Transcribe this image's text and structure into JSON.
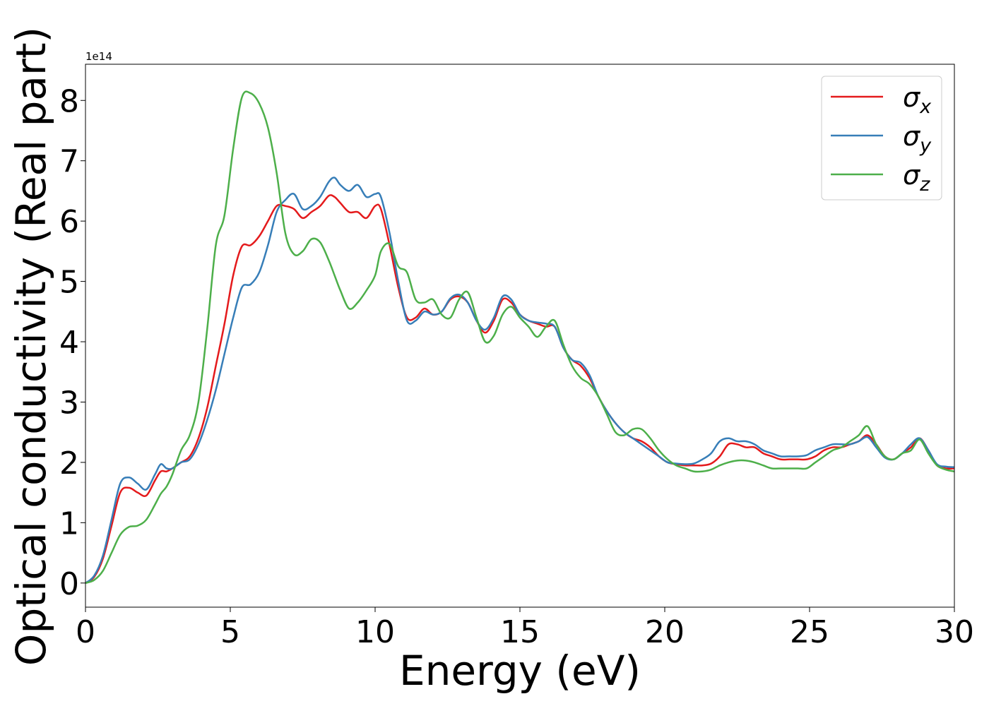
{
  "chart_data": {
    "type": "line",
    "title": "",
    "xlabel": "Energy (eV)",
    "ylabel": "Optical conductivity (Real part)",
    "y_offset_label": "1e14",
    "xlim": [
      0,
      30
    ],
    "ylim": [
      -0.4,
      8.6
    ],
    "xticks": [
      0,
      5,
      10,
      15,
      20,
      25,
      30
    ],
    "yticks": [
      0,
      1,
      2,
      3,
      4,
      5,
      6,
      7,
      8
    ],
    "grid": false,
    "legend_position": "top-right",
    "series": [
      {
        "name": "σx",
        "symbol": "σ",
        "subscript": "x",
        "color": "#e41a1c",
        "x": [
          0,
          0.3,
          0.6,
          0.9,
          1.2,
          1.5,
          1.8,
          2.1,
          2.4,
          2.6,
          2.8,
          3.0,
          3.3,
          3.6,
          3.9,
          4.2,
          4.5,
          4.8,
          5.1,
          5.4,
          5.7,
          6.0,
          6.3,
          6.6,
          6.9,
          7.2,
          7.5,
          7.8,
          8.1,
          8.4,
          8.6,
          8.8,
          9.1,
          9.4,
          9.7,
          10.0,
          10.2,
          10.5,
          10.8,
          11.1,
          11.4,
          11.7,
          12.0,
          12.3,
          12.6,
          12.9,
          13.2,
          13.5,
          13.8,
          14.1,
          14.4,
          14.7,
          15.0,
          15.3,
          15.6,
          15.9,
          16.2,
          16.5,
          16.8,
          17.1,
          17.4,
          17.7,
          18.0,
          18.3,
          18.6,
          18.9,
          19.2,
          19.5,
          19.8,
          20.1,
          20.4,
          20.7,
          21.0,
          21.3,
          21.6,
          21.9,
          22.2,
          22.5,
          22.8,
          23.1,
          23.4,
          23.7,
          24.0,
          24.3,
          24.6,
          24.9,
          25.2,
          25.5,
          25.8,
          26.1,
          26.4,
          26.7,
          27.0,
          27.3,
          27.6,
          27.9,
          28.2,
          28.5,
          28.8,
          29.1,
          29.4,
          29.7,
          30.0
        ],
        "y": [
          0,
          0.1,
          0.4,
          0.95,
          1.5,
          1.58,
          1.5,
          1.45,
          1.7,
          1.85,
          1.85,
          1.9,
          2.0,
          2.1,
          2.4,
          2.9,
          3.6,
          4.3,
          5.1,
          5.58,
          5.6,
          5.75,
          6.0,
          6.25,
          6.25,
          6.2,
          6.05,
          6.15,
          6.25,
          6.42,
          6.4,
          6.3,
          6.15,
          6.15,
          6.05,
          6.25,
          6.2,
          5.6,
          4.9,
          4.4,
          4.4,
          4.55,
          4.45,
          4.5,
          4.7,
          4.75,
          4.65,
          4.35,
          4.15,
          4.35,
          4.7,
          4.65,
          4.45,
          4.35,
          4.3,
          4.25,
          4.25,
          3.9,
          3.7,
          3.6,
          3.4,
          3.1,
          2.85,
          2.65,
          2.5,
          2.4,
          2.35,
          2.25,
          2.1,
          2.0,
          1.97,
          1.95,
          1.95,
          1.95,
          1.98,
          2.1,
          2.3,
          2.3,
          2.25,
          2.25,
          2.15,
          2.1,
          2.05,
          2.05,
          2.05,
          2.05,
          2.1,
          2.2,
          2.25,
          2.25,
          2.3,
          2.35,
          2.45,
          2.3,
          2.1,
          2.05,
          2.15,
          2.25,
          2.4,
          2.2,
          1.95,
          1.9,
          1.9
        ]
      },
      {
        "name": "σy",
        "symbol": "σ",
        "subscript": "y",
        "color": "#377eb8",
        "x": [
          0,
          0.3,
          0.6,
          0.9,
          1.2,
          1.5,
          1.8,
          2.1,
          2.4,
          2.6,
          2.8,
          3.0,
          3.3,
          3.6,
          3.9,
          4.2,
          4.5,
          4.8,
          5.1,
          5.4,
          5.7,
          6.0,
          6.3,
          6.6,
          6.9,
          7.2,
          7.5,
          7.8,
          8.1,
          8.4,
          8.6,
          8.8,
          9.1,
          9.4,
          9.7,
          10.0,
          10.2,
          10.5,
          10.8,
          11.1,
          11.4,
          11.7,
          12.0,
          12.3,
          12.6,
          12.9,
          13.2,
          13.5,
          13.8,
          14.1,
          14.4,
          14.7,
          15.0,
          15.3,
          15.6,
          15.9,
          16.2,
          16.5,
          16.8,
          17.1,
          17.4,
          17.7,
          18.0,
          18.3,
          18.6,
          18.9,
          19.2,
          19.5,
          19.8,
          20.1,
          20.4,
          20.7,
          21.0,
          21.3,
          21.6,
          21.9,
          22.2,
          22.5,
          22.8,
          23.1,
          23.4,
          23.7,
          24.0,
          24.3,
          24.6,
          24.9,
          25.2,
          25.5,
          25.8,
          26.1,
          26.4,
          26.7,
          27.0,
          27.3,
          27.6,
          27.9,
          28.2,
          28.5,
          28.8,
          29.1,
          29.4,
          29.7,
          30.0
        ],
        "y": [
          0,
          0.12,
          0.45,
          1.05,
          1.65,
          1.75,
          1.65,
          1.55,
          1.8,
          1.97,
          1.9,
          1.9,
          2.0,
          2.05,
          2.3,
          2.7,
          3.2,
          3.8,
          4.4,
          4.9,
          4.95,
          5.15,
          5.6,
          6.15,
          6.35,
          6.45,
          6.2,
          6.25,
          6.4,
          6.65,
          6.72,
          6.6,
          6.5,
          6.6,
          6.4,
          6.45,
          6.4,
          5.8,
          5.0,
          4.35,
          4.35,
          4.5,
          4.45,
          4.5,
          4.72,
          4.78,
          4.65,
          4.35,
          4.2,
          4.4,
          4.75,
          4.7,
          4.45,
          4.35,
          4.32,
          4.3,
          4.25,
          3.9,
          3.7,
          3.65,
          3.45,
          3.1,
          2.85,
          2.65,
          2.5,
          2.4,
          2.3,
          2.2,
          2.1,
          2.0,
          1.98,
          1.97,
          1.98,
          2.05,
          2.15,
          2.35,
          2.4,
          2.35,
          2.35,
          2.3,
          2.2,
          2.15,
          2.1,
          2.1,
          2.1,
          2.12,
          2.2,
          2.25,
          2.3,
          2.3,
          2.3,
          2.35,
          2.42,
          2.25,
          2.08,
          2.05,
          2.15,
          2.3,
          2.4,
          2.2,
          1.97,
          1.93,
          1.92
        ]
      },
      {
        "name": "σz",
        "symbol": "σ",
        "subscript": "z",
        "color": "#4daf4a",
        "x": [
          0,
          0.3,
          0.6,
          0.9,
          1.2,
          1.5,
          1.8,
          2.1,
          2.4,
          2.6,
          2.8,
          3.0,
          3.3,
          3.6,
          3.9,
          4.2,
          4.5,
          4.8,
          5.1,
          5.4,
          5.7,
          6.0,
          6.3,
          6.6,
          6.9,
          7.2,
          7.5,
          7.8,
          8.1,
          8.4,
          8.6,
          8.8,
          9.1,
          9.4,
          9.7,
          10.0,
          10.2,
          10.5,
          10.8,
          11.1,
          11.4,
          11.7,
          12.0,
          12.3,
          12.6,
          12.9,
          13.2,
          13.5,
          13.8,
          14.1,
          14.4,
          14.7,
          15.0,
          15.3,
          15.6,
          15.9,
          16.2,
          16.5,
          16.8,
          17.1,
          17.4,
          17.7,
          18.0,
          18.3,
          18.6,
          18.9,
          19.2,
          19.5,
          19.8,
          20.1,
          20.4,
          20.7,
          21.0,
          21.3,
          21.6,
          21.9,
          22.2,
          22.5,
          22.8,
          23.1,
          23.4,
          23.7,
          24.0,
          24.3,
          24.6,
          24.9,
          25.2,
          25.5,
          25.8,
          26.1,
          26.4,
          26.7,
          27.0,
          27.3,
          27.6,
          27.9,
          28.2,
          28.5,
          28.8,
          29.1,
          29.4,
          29.7,
          30.0
        ],
        "y": [
          0,
          0.05,
          0.2,
          0.5,
          0.8,
          0.93,
          0.95,
          1.05,
          1.3,
          1.48,
          1.6,
          1.8,
          2.2,
          2.45,
          3.0,
          4.2,
          5.6,
          6.1,
          7.2,
          8.05,
          8.12,
          7.95,
          7.55,
          6.8,
          5.8,
          5.45,
          5.5,
          5.7,
          5.65,
          5.35,
          5.1,
          4.85,
          4.55,
          4.65,
          4.85,
          5.1,
          5.5,
          5.62,
          5.25,
          5.15,
          4.7,
          4.65,
          4.7,
          4.45,
          4.4,
          4.7,
          4.82,
          4.4,
          4.0,
          4.1,
          4.45,
          4.58,
          4.4,
          4.25,
          4.08,
          4.25,
          4.35,
          3.95,
          3.6,
          3.4,
          3.3,
          3.1,
          2.8,
          2.5,
          2.45,
          2.55,
          2.55,
          2.4,
          2.2,
          2.05,
          1.95,
          1.9,
          1.85,
          1.85,
          1.88,
          1.95,
          2.0,
          2.03,
          2.03,
          2.0,
          1.95,
          1.9,
          1.9,
          1.9,
          1.9,
          1.9,
          2.0,
          2.1,
          2.2,
          2.25,
          2.35,
          2.45,
          2.6,
          2.3,
          2.1,
          2.05,
          2.15,
          2.2,
          2.38,
          2.15,
          1.95,
          1.88,
          1.85
        ]
      }
    ]
  }
}
